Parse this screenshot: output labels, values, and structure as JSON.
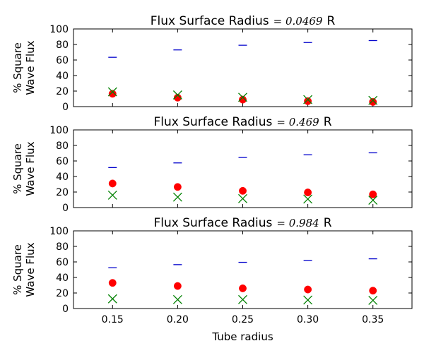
{
  "chart_data": [
    {
      "type": "scatter",
      "title_prefix": "Flux Surface Radius",
      "title_math": "= 0.0469",
      "title_suffix": "R",
      "ylabel_line1": "% Square",
      "ylabel_line2": "Wave Flux",
      "xlabel": "",
      "ylim": [
        0,
        100
      ],
      "xlim": [
        0.12,
        0.38
      ],
      "yticks": [
        "0",
        "20",
        "40",
        "60",
        "80",
        "100"
      ],
      "xticks": [],
      "series": [
        {
          "name": "dash",
          "marker": "hline",
          "color": "#0000cc",
          "x": [
            0.15,
            0.2,
            0.25,
            0.3,
            0.35
          ],
          "values": [
            63.5,
            73,
            79,
            82.5,
            85
          ]
        },
        {
          "name": "circle",
          "marker": "circle",
          "color": "#ff0000",
          "x": [
            0.15,
            0.2,
            0.25,
            0.3,
            0.35
          ],
          "values": [
            16.5,
            11.5,
            9,
            7,
            6
          ]
        },
        {
          "name": "cross",
          "marker": "x",
          "color": "#008000",
          "x": [
            0.15,
            0.2,
            0.25,
            0.3,
            0.35
          ],
          "values": [
            19,
            15,
            12,
            9,
            8
          ]
        }
      ]
    },
    {
      "type": "scatter",
      "title_prefix": "Flux Surface Radius",
      "title_math": "= 0.469",
      "title_suffix": "R",
      "ylabel_line1": "% Square",
      "ylabel_line2": "Wave Flux",
      "xlabel": "",
      "ylim": [
        0,
        100
      ],
      "xlim": [
        0.12,
        0.38
      ],
      "yticks": [
        "0",
        "20",
        "40",
        "60",
        "80",
        "100"
      ],
      "xticks": [],
      "series": [
        {
          "name": "dash",
          "marker": "hline",
          "color": "#0000cc",
          "x": [
            0.15,
            0.2,
            0.25,
            0.3,
            0.35
          ],
          "values": [
            51.5,
            57.5,
            64.5,
            68,
            70.5
          ]
        },
        {
          "name": "circle",
          "marker": "circle",
          "color": "#ff0000",
          "x": [
            0.15,
            0.2,
            0.25,
            0.3,
            0.35
          ],
          "values": [
            31,
            26.5,
            21.5,
            19.5,
            17
          ]
        },
        {
          "name": "cross",
          "marker": "x",
          "color": "#008000",
          "x": [
            0.15,
            0.2,
            0.25,
            0.3,
            0.35
          ],
          "values": [
            16,
            13.5,
            11.5,
            11,
            9.5
          ]
        }
      ]
    },
    {
      "type": "scatter",
      "title_prefix": "Flux Surface Radius",
      "title_math": "= 0.984",
      "title_suffix": "R",
      "ylabel_line1": "% Square",
      "ylabel_line2": "Wave Flux",
      "xlabel": "Tube radius",
      "ylim": [
        0,
        100
      ],
      "xlim": [
        0.12,
        0.38
      ],
      "yticks": [
        "0",
        "20",
        "40",
        "60",
        "80",
        "100"
      ],
      "xticks": [
        "0.15",
        "0.20",
        "0.25",
        "0.30",
        "0.35"
      ],
      "series": [
        {
          "name": "dash",
          "marker": "hline",
          "color": "#0000cc",
          "x": [
            0.15,
            0.2,
            0.25,
            0.3,
            0.35
          ],
          "values": [
            52.5,
            56.5,
            59.5,
            62,
            64
          ]
        },
        {
          "name": "circle",
          "marker": "circle",
          "color": "#ff0000",
          "x": [
            0.15,
            0.2,
            0.25,
            0.3,
            0.35
          ],
          "values": [
            33,
            29,
            26,
            24.5,
            23
          ]
        },
        {
          "name": "cross",
          "marker": "x",
          "color": "#008000",
          "x": [
            0.15,
            0.2,
            0.25,
            0.3,
            0.35
          ],
          "values": [
            12.5,
            11.5,
            11.5,
            11,
            10.5
          ]
        }
      ]
    }
  ]
}
